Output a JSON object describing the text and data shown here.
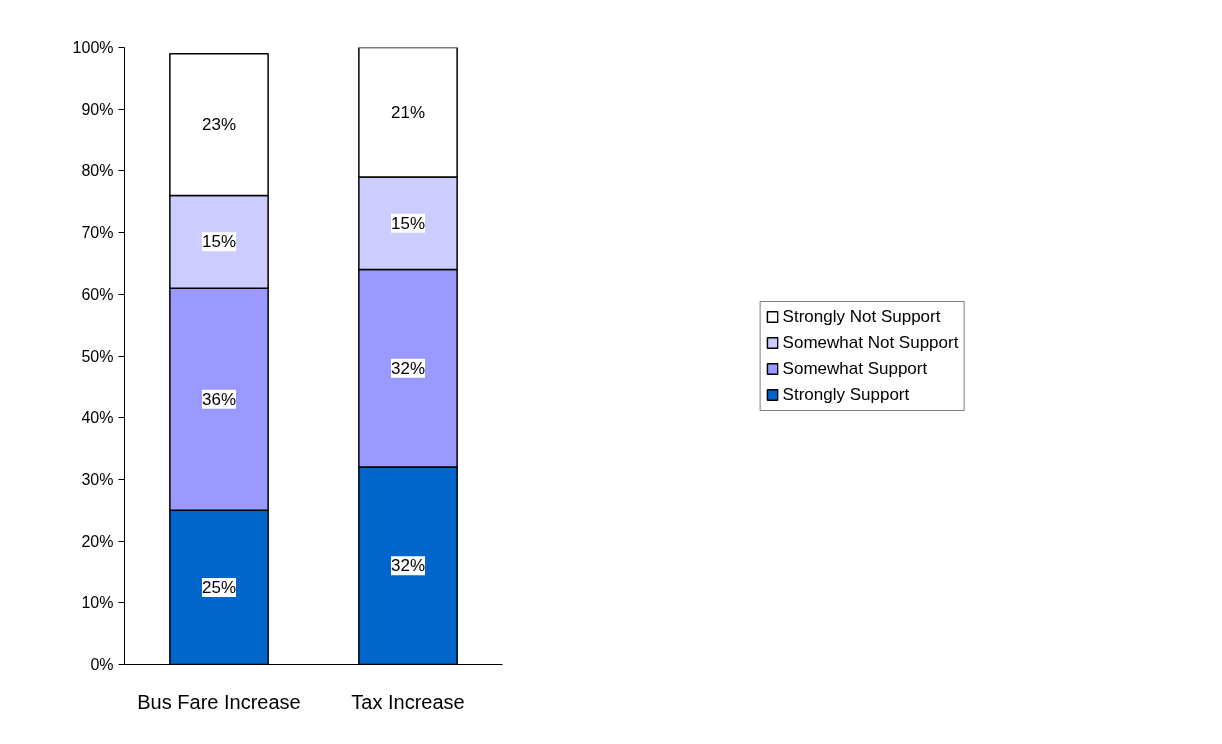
{
  "chart_data": {
    "type": "bar",
    "stacked": true,
    "grid": false,
    "legend": "right",
    "categories": [
      "Bus Fare Increase",
      "Tax Increase"
    ],
    "series": [
      {
        "name": "Strongly Support",
        "color": "#0066cc",
        "values": [
          25,
          32
        ],
        "value_labels": [
          "25%",
          "32%"
        ]
      },
      {
        "name": "Somewhat Support",
        "color": "#9999ff",
        "values": [
          36,
          32
        ],
        "value_labels": [
          "36%",
          "32%"
        ]
      },
      {
        "name": "Somewhat Not Support",
        "color": "#ccccff",
        "values": [
          15,
          15
        ],
        "value_labels": [
          "15%",
          "15%"
        ]
      },
      {
        "name": "Strongly Not Support",
        "color": "#ffffff",
        "values": [
          23,
          21
        ],
        "value_labels": [
          "23%",
          "21%"
        ]
      }
    ],
    "ylim": [
      0,
      100
    ],
    "yticks": [
      {
        "value": 0,
        "label": "0%"
      },
      {
        "value": 10,
        "label": "10%"
      },
      {
        "value": 20,
        "label": "20%"
      },
      {
        "value": 30,
        "label": "30%"
      },
      {
        "value": 40,
        "label": "40%"
      },
      {
        "value": 50,
        "label": "50%"
      },
      {
        "value": 60,
        "label": "60%"
      },
      {
        "value": 70,
        "label": "70%"
      },
      {
        "value": 80,
        "label": "80%"
      },
      {
        "value": 90,
        "label": "90%"
      },
      {
        "value": 100,
        "label": "100%"
      }
    ]
  }
}
